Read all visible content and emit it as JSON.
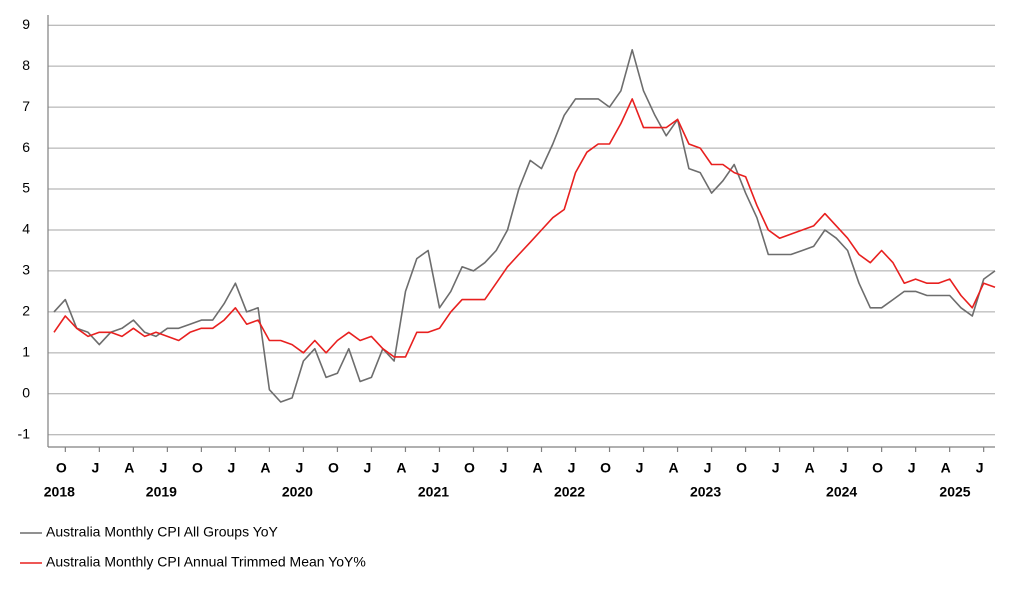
{
  "chart_data": {
    "type": "line",
    "categories": [
      null,
      "O",
      null,
      null,
      "J",
      null,
      null,
      "A",
      null,
      null,
      "J",
      null,
      null,
      "O",
      null,
      null,
      "J",
      null,
      null,
      "A",
      null,
      null,
      "J",
      null,
      null,
      "O",
      null,
      null,
      "J",
      null,
      null,
      "A",
      null,
      null,
      "J",
      null,
      null,
      "O",
      null,
      null,
      "J",
      null,
      null,
      "A",
      null,
      null,
      "J",
      null,
      null,
      "O",
      null,
      null,
      "J",
      null,
      null,
      "A",
      null,
      null,
      "J",
      null,
      null,
      "O",
      null,
      null,
      "J",
      null,
      null,
      "A",
      null,
      null,
      "J",
      null,
      null,
      "O",
      null,
      null,
      "J",
      null,
      null,
      "A",
      null,
      null,
      "J",
      null
    ],
    "years": [
      null,
      "2018",
      null,
      null,
      null,
      null,
      null,
      null,
      null,
      null,
      "2019",
      null,
      null,
      null,
      null,
      null,
      null,
      null,
      null,
      null,
      null,
      null,
      "2020",
      null,
      null,
      null,
      null,
      null,
      null,
      null,
      null,
      null,
      null,
      null,
      "2021",
      null,
      null,
      null,
      null,
      null,
      null,
      null,
      null,
      null,
      null,
      null,
      "2022",
      null,
      null,
      null,
      null,
      null,
      null,
      null,
      null,
      null,
      null,
      null,
      "2023",
      null,
      null,
      null,
      null,
      null,
      null,
      null,
      null,
      null,
      null,
      null,
      "2024",
      null,
      null,
      null,
      null,
      null,
      null,
      null,
      null,
      null,
      "2025",
      null,
      null,
      null
    ],
    "series": [
      {
        "name": "Australia Monthly CPI All Groups YoY",
        "color": "#6d6d6d",
        "values": [
          2.0,
          2.3,
          1.6,
          1.5,
          1.2,
          1.5,
          1.6,
          1.8,
          1.5,
          1.4,
          1.6,
          1.6,
          1.7,
          1.8,
          1.8,
          2.2,
          2.7,
          2.0,
          2.1,
          0.1,
          -0.2,
          -0.1,
          0.8,
          1.1,
          0.4,
          0.5,
          1.1,
          0.3,
          0.4,
          1.1,
          0.8,
          2.5,
          3.3,
          3.5,
          2.1,
          2.5,
          3.1,
          3.0,
          3.2,
          3.5,
          4.0,
          5.0,
          5.7,
          5.5,
          6.1,
          6.8,
          7.2,
          7.2,
          7.2,
          7.0,
          7.4,
          8.4,
          7.4,
          6.8,
          6.3,
          6.7,
          5.5,
          5.4,
          4.9,
          5.2,
          5.6,
          4.9,
          4.3,
          3.4,
          3.4,
          3.4,
          3.5,
          3.6,
          4.0,
          3.8,
          3.5,
          2.7,
          2.1,
          2.1,
          2.3,
          2.5,
          2.5,
          2.4,
          2.4,
          2.4,
          2.1,
          1.9,
          2.8,
          3.0
        ]
      },
      {
        "name": "Australia Monthly CPI Annual Trimmed Mean YoY%",
        "color": "#e8201f",
        "values": [
          1.5,
          1.9,
          1.6,
          1.4,
          1.5,
          1.5,
          1.4,
          1.6,
          1.4,
          1.5,
          1.4,
          1.3,
          1.5,
          1.6,
          1.6,
          1.8,
          2.1,
          1.7,
          1.8,
          1.3,
          1.3,
          1.2,
          1.0,
          1.3,
          1.0,
          1.3,
          1.5,
          1.3,
          1.4,
          1.1,
          0.9,
          0.9,
          1.5,
          1.5,
          1.6,
          2.0,
          2.3,
          2.3,
          2.3,
          2.7,
          3.1,
          3.4,
          3.7,
          4.0,
          4.3,
          4.5,
          5.4,
          5.9,
          6.1,
          6.1,
          6.6,
          7.2,
          6.5,
          6.5,
          6.5,
          6.7,
          6.1,
          6.0,
          5.6,
          5.6,
          5.4,
          5.3,
          4.6,
          4.0,
          3.8,
          3.9,
          4.0,
          4.1,
          4.4,
          4.1,
          3.8,
          3.4,
          3.2,
          3.5,
          3.2,
          2.7,
          2.8,
          2.7,
          2.7,
          2.8,
          2.4,
          2.1,
          2.7,
          2.6
        ]
      }
    ],
    "ylim": [
      -1.3,
      9.25
    ],
    "yticks": [
      -1,
      0,
      1,
      2,
      3,
      4,
      5,
      6,
      7,
      8,
      9
    ],
    "grid": true
  }
}
